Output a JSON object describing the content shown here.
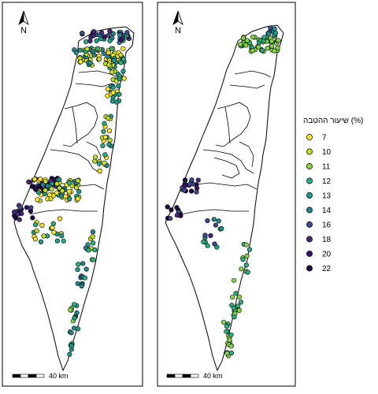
{
  "legend": {
    "title": "שיעור ההטבה (%)",
    "colors": {
      "7": "#fde725",
      "10": "#c2df23",
      "11": "#86d549",
      "12": "#2ab07f",
      "13": "#1e9b8a",
      "14": "#25858e",
      "16": "#3e4989",
      "18": "#482878",
      "20": "#3b0f70",
      "22": "#1f0a3d"
    },
    "items": [
      {
        "label": "7",
        "value": "7"
      },
      {
        "label": "10",
        "value": "10"
      },
      {
        "label": "11",
        "value": "11"
      },
      {
        "label": "12",
        "value": "12"
      },
      {
        "label": "13",
        "value": "13"
      },
      {
        "label": "14",
        "value": "14"
      },
      {
        "label": "16",
        "value": "16"
      },
      {
        "label": "18",
        "value": "18"
      },
      {
        "label": "20",
        "value": "20"
      },
      {
        "label": "22",
        "value": "22"
      }
    ]
  },
  "maps": [
    {
      "north_label": "N",
      "scale_label": "40 km"
    },
    {
      "north_label": "N",
      "scale_label": "40 km"
    }
  ]
}
